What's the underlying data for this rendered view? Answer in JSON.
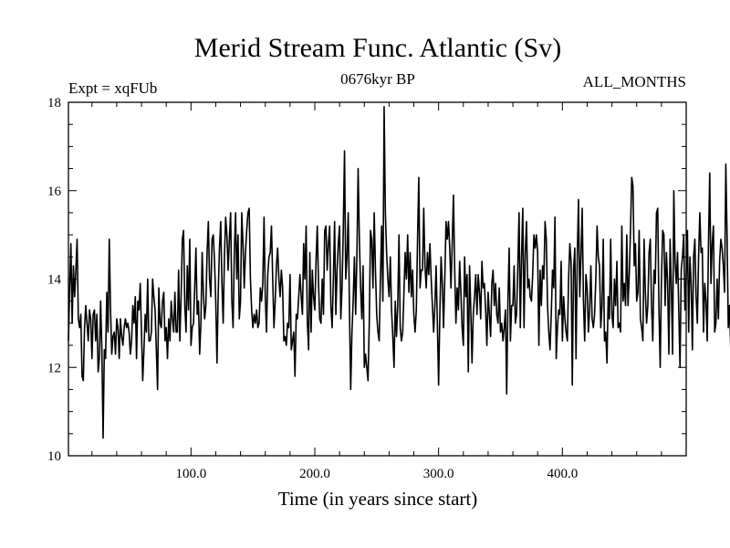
{
  "chart_data": {
    "type": "line",
    "title": "Merid Stream Func. Atlantic (Sv)",
    "subtitle_left": "Expt = xqFUb",
    "subtitle_center": "0676kyr BP",
    "subtitle_right": "ALL_MONTHS",
    "xlabel": "Time (in years since start)",
    "ylabel": "",
    "xlim": [
      1,
      500
    ],
    "ylim": [
      10,
      18
    ],
    "x_ticks": [
      100,
      200,
      300,
      400
    ],
    "x_tick_labels": [
      "100.0",
      "200.0",
      "300.0",
      "400.0"
    ],
    "y_ticks": [
      10,
      12,
      14,
      16,
      18
    ],
    "y_tick_labels": [
      "10",
      "12",
      "14",
      "16",
      "18"
    ],
    "series": [
      {
        "name": "Atlantic MSF",
        "x_start": 1,
        "x_step": 1,
        "values": [
          12.6,
          13.8,
          14.8,
          13.0,
          14.3,
          13.6,
          14.2,
          14.9,
          13.1,
          12.9,
          13.2,
          11.8,
          11.7,
          12.9,
          13.4,
          13.0,
          12.6,
          13.3,
          13.1,
          12.2,
          13.2,
          13.3,
          12.6,
          13.2,
          11.9,
          12.2,
          13.5,
          12.4,
          10.4,
          12.4,
          12.2,
          13.7,
          12.8,
          14.9,
          13.3,
          12.3,
          12.7,
          12.8,
          12.3,
          13.1,
          12.9,
          12.2,
          13.1,
          12.7,
          12.5,
          12.9,
          13.1,
          12.9,
          13.0,
          12.8,
          12.3,
          12.6,
          13.4,
          13.0,
          13.6,
          12.2,
          13.5,
          13.3,
          13.9,
          12.8,
          11.7,
          12.4,
          13.2,
          12.8,
          14.0,
          12.6,
          12.6,
          12.8,
          14.0,
          13.6,
          13.3,
          12.4,
          11.5,
          13.8,
          13.0,
          12.9,
          13.5,
          13.7,
          12.6,
          12.9,
          12.2,
          13.1,
          12.6,
          13.5,
          13.1,
          12.8,
          13.7,
          12.8,
          12.8,
          14.2,
          12.6,
          13.6,
          14.9,
          15.1,
          13.4,
          12.8,
          14.3,
          13.3,
          14.9,
          12.5,
          12.9,
          13.0,
          13.8,
          14.7,
          13.2,
          13.5,
          12.3,
          13.0,
          14.6,
          13.7,
          13.1,
          13.4,
          14.6,
          15.3,
          14.0,
          13.6,
          14.9,
          15.0,
          14.4,
          13.5,
          12.1,
          13.7,
          14.7,
          15.3,
          13.9,
          13.0,
          14.5,
          15.4,
          15.0,
          14.2,
          14.9,
          15.5,
          13.5,
          12.9,
          14.6,
          15.5,
          14.0,
          15.0,
          13.1,
          13.5,
          15.5,
          14.8,
          13.8,
          14.6,
          15.1,
          15.5,
          15.6,
          14.0,
          13.3,
          12.9,
          13.2,
          13.0,
          13.3,
          12.9,
          13.0,
          13.8,
          13.5,
          13.9,
          15.4,
          13.6,
          12.8,
          14.1,
          14.5,
          14.6,
          15.2,
          14.0,
          12.9,
          13.5,
          14.3,
          14.7,
          14.0,
          13.6,
          14.2,
          13.8,
          12.6,
          12.7,
          12.5,
          13.0,
          12.9,
          14.1,
          12.4,
          12.6,
          12.8,
          11.8,
          13.2,
          13.1,
          13.6,
          14.1,
          13.6,
          13.2,
          14.8,
          14.0,
          15.2,
          13.0,
          12.4,
          14.6,
          12.8,
          14.2,
          13.6,
          13.3,
          14.4,
          15.2,
          13.9,
          13.1,
          13.0,
          14.0,
          13.2,
          15.1,
          15.2,
          14.2,
          14.8,
          15.2,
          13.4,
          12.9,
          14.0,
          15.3,
          13.2,
          14.2,
          14.8,
          15.2,
          13.1,
          13.8,
          15.1,
          16.9,
          14.0,
          14.5,
          15.5,
          13.3,
          11.5,
          12.8,
          13.5,
          14.5,
          13.2,
          14.5,
          16.5,
          14.9,
          13.8,
          13.1,
          14.3,
          12.0,
          12.3,
          12.0,
          11.7,
          13.0,
          15.1,
          14.9,
          13.8,
          15.5,
          14.2,
          13.2,
          12.8,
          12.6,
          14.0,
          15.2,
          13.5,
          17.9,
          15.5,
          14.6,
          14.0,
          13.6,
          14.5,
          13.3,
          12.7,
          12.0,
          13.5,
          12.7,
          13.4,
          15.0,
          12.9,
          12.6,
          12.8,
          13.7,
          14.6,
          14.0,
          15.0,
          13.7,
          14.6,
          13.6,
          14.2,
          13.2,
          12.8,
          13.3,
          14.9,
          16.3,
          13.8,
          14.2,
          14.2,
          15.6,
          14.3,
          13.8,
          14.6,
          14.1,
          14.8,
          14.0,
          13.4,
          12.8,
          13.4,
          14.3,
          13.0,
          11.6,
          13.2,
          14.5,
          13.9,
          12.9,
          14.0,
          15.3,
          14.9,
          15.3,
          14.7,
          13.8,
          14.8,
          15.9,
          14.2,
          13.0,
          13.8,
          13.3,
          14.4,
          13.7,
          12.9,
          12.5,
          14.5,
          13.6,
          14.1,
          11.9,
          14.3,
          13.3,
          12.1,
          13.2,
          13.6,
          14.1,
          13.2,
          14.1,
          13.7,
          13.1,
          14.4,
          13.8,
          13.9,
          13.3,
          12.5,
          13.7,
          13.2,
          12.7,
          13.9,
          14.2,
          13.4,
          13.9,
          13.2,
          13.0,
          13.8,
          12.8,
          13.0,
          12.6,
          12.9,
          13.3,
          11.4,
          13.5,
          14.7,
          12.6,
          13.4,
          13.4,
          14.3,
          13.0,
          13.2,
          14.3,
          15.5,
          12.9,
          14.5,
          15.6,
          12.9,
          14.6,
          15.3,
          13.8,
          14.0,
          13.6,
          13.5,
          14.1,
          15.0,
          14.7,
          15.0,
          14.6,
          12.5,
          14.2,
          13.4,
          14.3,
          14.0,
          15.3,
          14.9,
          13.4,
          12.8,
          12.4,
          13.2,
          14.2,
          13.8,
          15.4,
          12.2,
          12.9,
          13.3,
          13.2,
          14.4,
          12.6,
          13.6,
          13.1,
          12.8,
          12.6,
          14.0,
          14.8,
          14.4,
          11.6,
          14.2,
          14.7,
          12.2,
          14.5,
          15.8,
          13.6,
          14.5,
          15.6,
          13.5,
          12.6,
          14.1,
          13.8,
          12.8,
          13.3,
          14.3,
          13.1,
          12.9,
          13.2,
          14.0,
          15.2,
          14.5,
          14.3,
          12.9,
          13.4,
          14.9,
          12.6,
          12.8,
          12.1,
          13.6,
          13.1,
          14.9,
          13.2,
          12.9,
          14.0,
          13.4,
          14.4,
          12.9,
          13.0,
          12.8,
          15.2,
          13.5,
          13.9,
          13.4,
          15.0,
          13.4,
          14.1,
          15.1,
          16.3,
          16.1,
          14.3,
          14.8,
          13.5,
          13.7,
          15.1,
          13.1,
          12.9,
          12.6,
          14.9,
          13.7,
          13.0,
          13.4,
          14.6,
          14.9,
          13.4,
          12.6,
          14.2,
          13.9,
          15.5,
          15.6,
          13.3,
          12.0,
          14.0,
          15.1,
          15.0,
          13.4,
          14.6,
          13.9,
          12.3,
          14.9,
          13.8,
          12.3,
          16.0,
          14.4,
          13.9,
          14.6,
          13.3,
          12.0,
          14.2,
          14.5,
          15.0,
          13.3,
          14.0,
          15.1,
          12.8,
          14.5,
          13.9,
          12.4,
          14.5,
          14.9,
          13.6,
          13.0,
          14.5,
          15.5,
          14.6,
          14.7,
          12.8,
          13.9,
          13.5,
          12.6,
          14.8,
          16.4,
          13.9,
          14.8,
          15.2,
          12.8,
          13.0,
          14.0,
          13.1,
          14.4,
          14.9,
          14.7,
          14.3,
          13.7,
          16.6,
          15.0,
          12.9,
          13.4,
          12.4
        ]
      }
    ]
  }
}
